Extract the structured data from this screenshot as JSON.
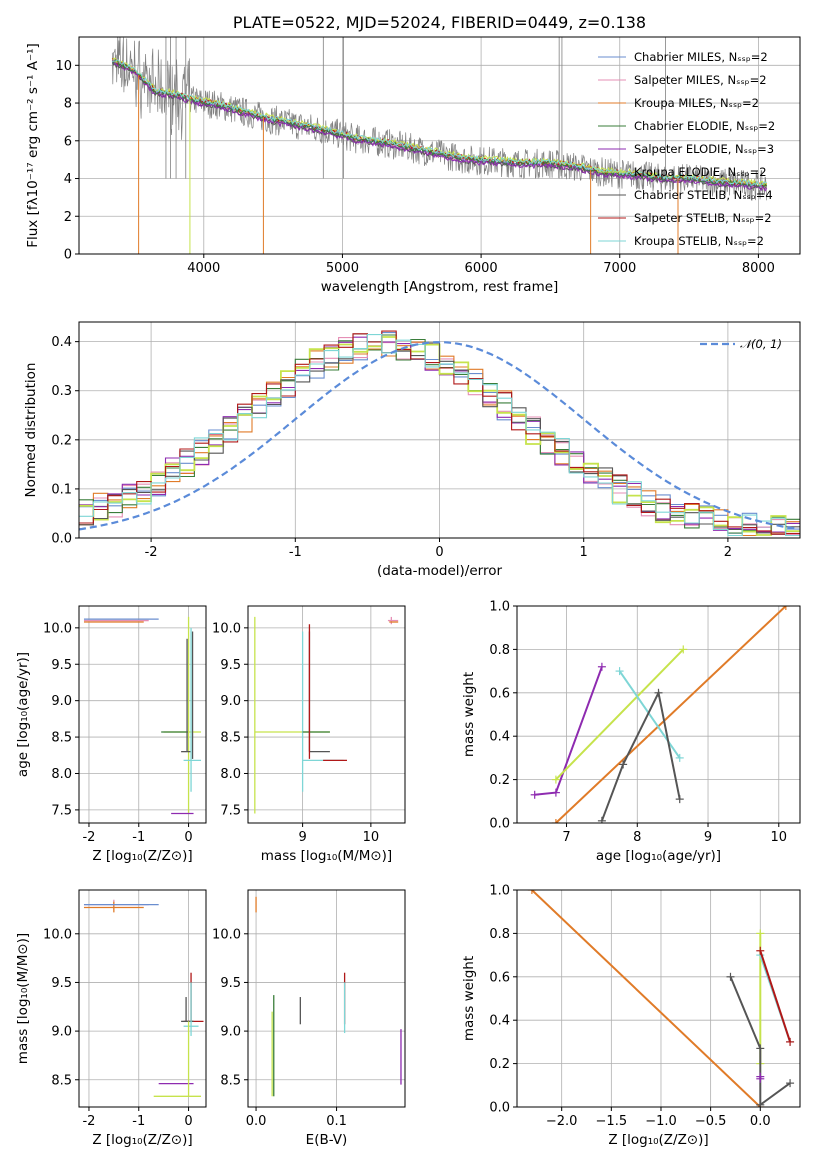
{
  "colors": {
    "chabrier_miles": "#6a8ecf",
    "salpeter_miles": "#e58fb6",
    "kroupa_miles": "#e07b28",
    "chabrier_elodie": "#3a7d3a",
    "salpeter_elodie": "#8e2bb0",
    "kroupa_elodie": "#c6e34c",
    "chabrier_stelib": "#555555",
    "salpeter_stelib": "#b01818",
    "kroupa_stelib": "#7ed6d6",
    "data": "#808080",
    "normal": "#5b8bd9"
  },
  "chart_data": [
    {
      "id": "spectrum",
      "type": "line",
      "title": "PLATE=0522, MJD=52024, FIBERID=0449, z=0.138",
      "xlabel": "wavelength [Angstrom, rest frame]",
      "ylabel": "Flux [fλ10⁻¹⁷ erg cm⁻² s⁻¹ A⁻¹]",
      "xlim": [
        3100,
        8300
      ],
      "ylim": [
        0,
        11.5
      ],
      "xticks": [
        4000,
        5000,
        6000,
        7000,
        8000
      ],
      "yticks": [
        0,
        2,
        4,
        6,
        8,
        10
      ],
      "legend_position": "top-right",
      "legend": [
        {
          "label": "Chabrier MILES, Nₛₛₚ=2",
          "color": "#6a8ecf"
        },
        {
          "label": "Salpeter MILES, Nₛₛₚ=2",
          "color": "#e58fb6"
        },
        {
          "label": "Kroupa MILES, Nₛₛₚ=2",
          "color": "#e07b28"
        },
        {
          "label": "Chabrier ELODIE, Nₛₛₚ=2",
          "color": "#3a7d3a"
        },
        {
          "label": "Salpeter ELODIE, Nₛₛₚ=3",
          "color": "#8e2bb0"
        },
        {
          "label": "Kroupa ELODIE, Nₛₛₚ=2",
          "color": "#c6e34c"
        },
        {
          "label": "Chabrier STELIB, Nₛₛₚ=4",
          "color": "#555555"
        },
        {
          "label": "Salpeter STELIB, Nₛₛₚ=2",
          "color": "#b01818"
        },
        {
          "label": "Kroupa STELIB, Nₛₛₚ=2",
          "color": "#7ed6d6"
        }
      ],
      "continuum": {
        "x": [
          3350,
          3500,
          3650,
          3800,
          3950,
          4100,
          4300,
          4500,
          4700,
          4900,
          5100,
          5300,
          5500,
          5700,
          5900,
          6100,
          6300,
          6500,
          6700,
          6900,
          7100,
          7300,
          7500,
          7700,
          7900,
          8050
        ],
        "y": [
          10.2,
          9.7,
          8.6,
          8.4,
          8.1,
          7.9,
          7.5,
          7.1,
          6.8,
          6.5,
          6.1,
          5.9,
          5.6,
          5.3,
          5.0,
          4.9,
          4.8,
          4.8,
          4.6,
          4.3,
          4.2,
          4.0,
          4.0,
          3.8,
          3.7,
          3.6
        ]
      }
    },
    {
      "id": "residuals",
      "type": "line",
      "xlabel": "(data-model)/error",
      "ylabel": "Normed distribution",
      "xlim": [
        -2.5,
        2.5
      ],
      "ylim": [
        0,
        0.44
      ],
      "xticks": [
        -2,
        -1,
        0,
        1,
        2
      ],
      "yticks": [
        0.0,
        0.1,
        0.2,
        0.3,
        0.4
      ],
      "legend_position": "top-right",
      "legend": [
        {
          "label": "𝒩(0, 1)",
          "color": "#5b8bd9"
        }
      ],
      "gaussian": {
        "mean": 0,
        "sigma": 1
      }
    },
    {
      "id": "age_vs_Z",
      "type": "scatter",
      "xlabel": "Z [log₁₀(Z/Z⊙)]",
      "ylabel": "age  [log₁₀(age/yr)]",
      "xlim": [
        -2.2,
        0.35
      ],
      "ylim": [
        7.32,
        10.3
      ],
      "xticks": [
        -2,
        -1,
        0
      ],
      "yticks": [
        7.5,
        8.0,
        8.5,
        9.0,
        9.5,
        10.0
      ]
    },
    {
      "id": "age_vs_mass",
      "type": "scatter",
      "xlabel": "mass [log₁₀(M/M⊙)]",
      "xlim": [
        8.2,
        10.5
      ],
      "ylim": [
        7.32,
        10.3
      ],
      "xticks": [
        9,
        10
      ],
      "yticks": [
        7.5,
        8.0,
        8.5,
        9.0,
        9.5,
        10.0
      ]
    },
    {
      "id": "mass_weight_vs_age",
      "type": "line",
      "xlabel": "age  [log₁₀(age/yr)]",
      "ylabel": "mass weight",
      "xlim": [
        6.3,
        10.3
      ],
      "ylim": [
        0,
        1
      ],
      "xticks": [
        7,
        8,
        9,
        10
      ],
      "yticks": [
        0.0,
        0.2,
        0.4,
        0.6,
        0.8,
        1.0
      ],
      "series": [
        {
          "color": "#e07b28",
          "x": [
            6.85,
            10.1
          ],
          "y": [
            0.0,
            1.0
          ]
        },
        {
          "color": "#8e2bb0",
          "x": [
            6.55,
            6.85,
            7.5
          ],
          "y": [
            0.13,
            0.14,
            0.72
          ]
        },
        {
          "color": "#c6e34c",
          "x": [
            6.85,
            8.65
          ],
          "y": [
            0.2,
            0.8
          ]
        },
        {
          "color": "#7ed6d6",
          "x": [
            7.75,
            8.6
          ],
          "y": [
            0.7,
            0.3
          ]
        },
        {
          "color": "#555555",
          "x": [
            7.5,
            7.8,
            8.3,
            8.6
          ],
          "y": [
            0.01,
            0.27,
            0.6,
            0.11
          ]
        }
      ]
    },
    {
      "id": "mass_vs_Z",
      "type": "scatter",
      "xlabel": "Z [log₁₀(Z/Z⊙)]",
      "ylabel": "mass [log₁₀(M/M⊙)]",
      "xlim": [
        -2.2,
        0.35
      ],
      "ylim": [
        8.22,
        10.45
      ],
      "xticks": [
        -2,
        -1,
        0
      ],
      "yticks": [
        8.5,
        9.0,
        9.5,
        10.0
      ]
    },
    {
      "id": "mass_vs_ebv",
      "type": "scatter",
      "xlabel": "E(B-V)",
      "xlim": [
        -0.01,
        0.185
      ],
      "ylim": [
        8.22,
        10.45
      ],
      "xticks": [
        0.0,
        0.1
      ],
      "yticks": [
        8.5,
        9.0,
        9.5,
        10.0
      ]
    },
    {
      "id": "mass_weight_vs_Z",
      "type": "line",
      "xlabel": "Z [log₁₀(Z/Z⊙)]",
      "ylabel": "mass weight",
      "xlim": [
        -2.45,
        0.4
      ],
      "ylim": [
        0,
        1
      ],
      "xticks": [
        -2.0,
        -1.5,
        -1.0,
        -0.5,
        0.0
      ],
      "yticks": [
        0.0,
        0.2,
        0.4,
        0.6,
        0.8,
        1.0
      ],
      "series": [
        {
          "color": "#e07b28",
          "x": [
            -2.3,
            0.0
          ],
          "y": [
            1.0,
            0.0
          ]
        },
        {
          "color": "#c6e34c",
          "x": [
            0.0,
            0.0
          ],
          "y": [
            0.8,
            0.2
          ]
        },
        {
          "color": "#7ed6d6",
          "x": [
            0.0,
            0.3
          ],
          "y": [
            0.7,
            0.3
          ]
        },
        {
          "color": "#555555",
          "x": [
            -0.3,
            0.0,
            0.0,
            0.3
          ],
          "y": [
            0.6,
            0.27,
            0.01,
            0.11
          ]
        },
        {
          "color": "#8e2bb0",
          "x": [
            0.0,
            0.0
          ],
          "y": [
            0.14,
            0.13
          ]
        },
        {
          "color": "#b01818",
          "x": [
            0.0,
            0.3
          ],
          "y": [
            0.72,
            0.3
          ]
        }
      ]
    }
  ]
}
